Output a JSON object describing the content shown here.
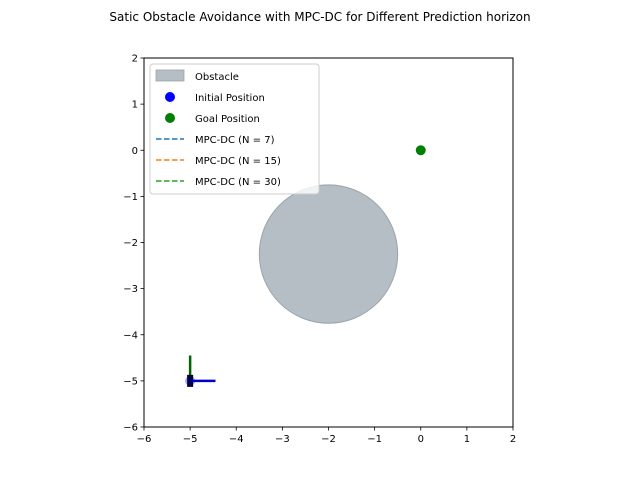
{
  "chart_data": {
    "type": "scatter",
    "title": "Satic Obstacle Avoidance with MPC-DC for Different Prediction horizon",
    "xlabel": "",
    "ylabel": "",
    "xlim": [
      -6,
      2
    ],
    "ylim": [
      -6,
      2
    ],
    "x_ticks": [
      -6,
      -5,
      -4,
      -3,
      -2,
      -1,
      0,
      1,
      2
    ],
    "y_ticks": [
      -6,
      -5,
      -4,
      -3,
      -2,
      -1,
      0,
      1,
      2
    ],
    "x_tick_labels": [
      "−6",
      "−5",
      "−4",
      "−3",
      "−2",
      "−1",
      "0",
      "1",
      "2"
    ],
    "y_tick_labels": [
      "−6",
      "−5",
      "−4",
      "−3",
      "−2",
      "−1",
      "0",
      "1",
      "2"
    ],
    "grid": false,
    "legend_position": "top-left",
    "obstacle": {
      "label": "Obstacle",
      "center": [
        -2,
        -2.25
      ],
      "radius": 1.5,
      "color": "#b6bec5"
    },
    "initial_position": {
      "label": "Initial Position",
      "x": -5,
      "y": -5,
      "color": "#0000ff"
    },
    "goal_position": {
      "label": "Goal Position",
      "x": 0,
      "y": 0,
      "color": "#008000"
    },
    "series": [
      {
        "name": "MPC-DC (N = 7)",
        "color": "#1f77b4",
        "dash": true,
        "x": [
          -5
        ],
        "y": [
          -5
        ]
      },
      {
        "name": "MPC-DC (N = 15)",
        "color": "#ff7f0e",
        "dash": true,
        "x": [
          -5
        ],
        "y": [
          -5
        ]
      },
      {
        "name": "MPC-DC (N = 30)",
        "color": "#2ca02c",
        "dash": true,
        "x": [
          -5
        ],
        "y": [
          -5
        ]
      }
    ],
    "robot_frame": {
      "origin": [
        -5,
        -5
      ],
      "x_axis_end": [
        -4.45,
        -5
      ],
      "y_axis_end": [
        -5,
        -4.45
      ],
      "x_axis_color": "#0000cc",
      "y_axis_color": "#006400",
      "body_color": "#000000"
    }
  }
}
